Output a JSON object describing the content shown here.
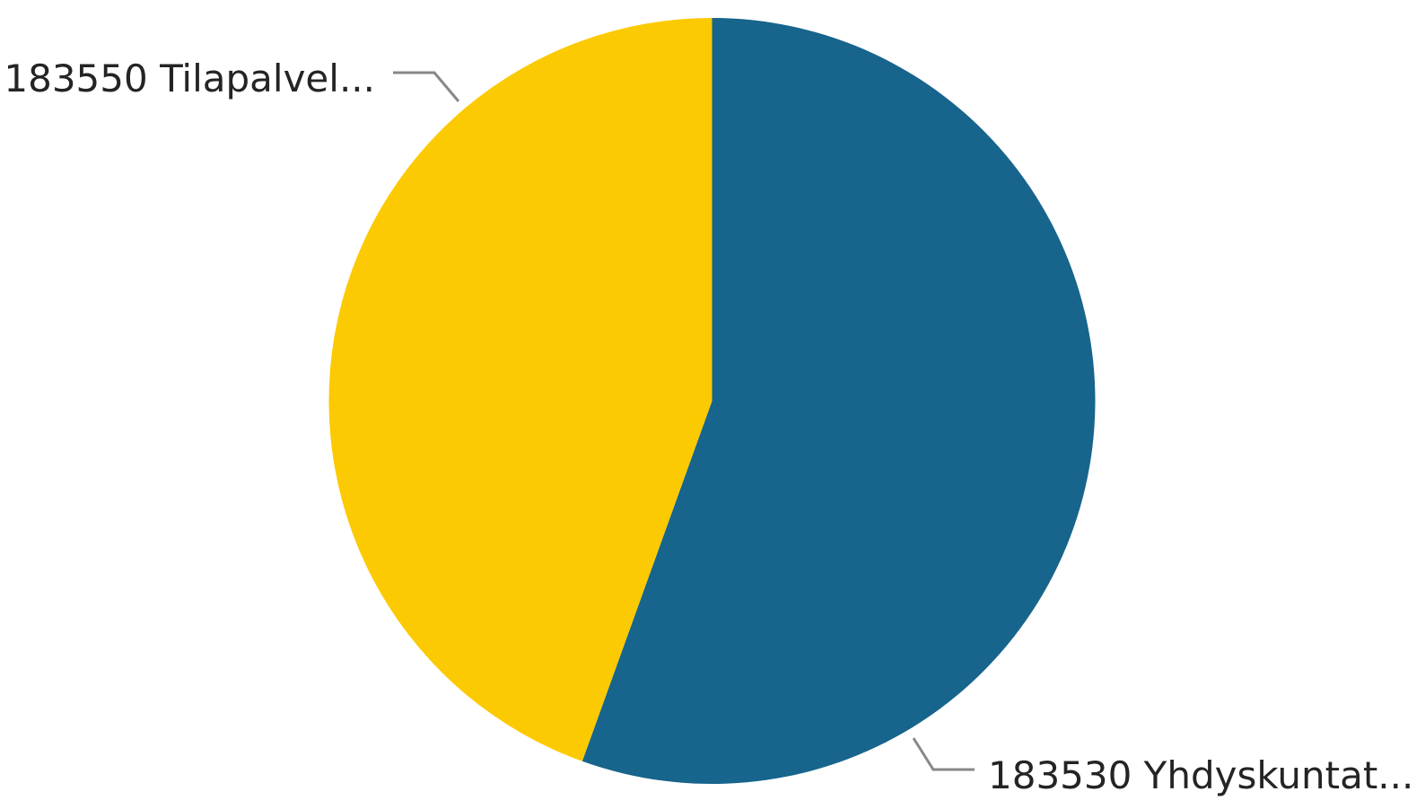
{
  "chart_data": {
    "type": "pie",
    "title": "",
    "start_angle_deg": 0,
    "direction": "clockwise",
    "legend": "none",
    "slices": [
      {
        "label": "183530 Yhdyskuntat...",
        "value": 55.5,
        "color": "#17648c"
      },
      {
        "label": "183550 Tilapalvel...",
        "value": 44.5,
        "color": "#fcca03"
      }
    ]
  }
}
